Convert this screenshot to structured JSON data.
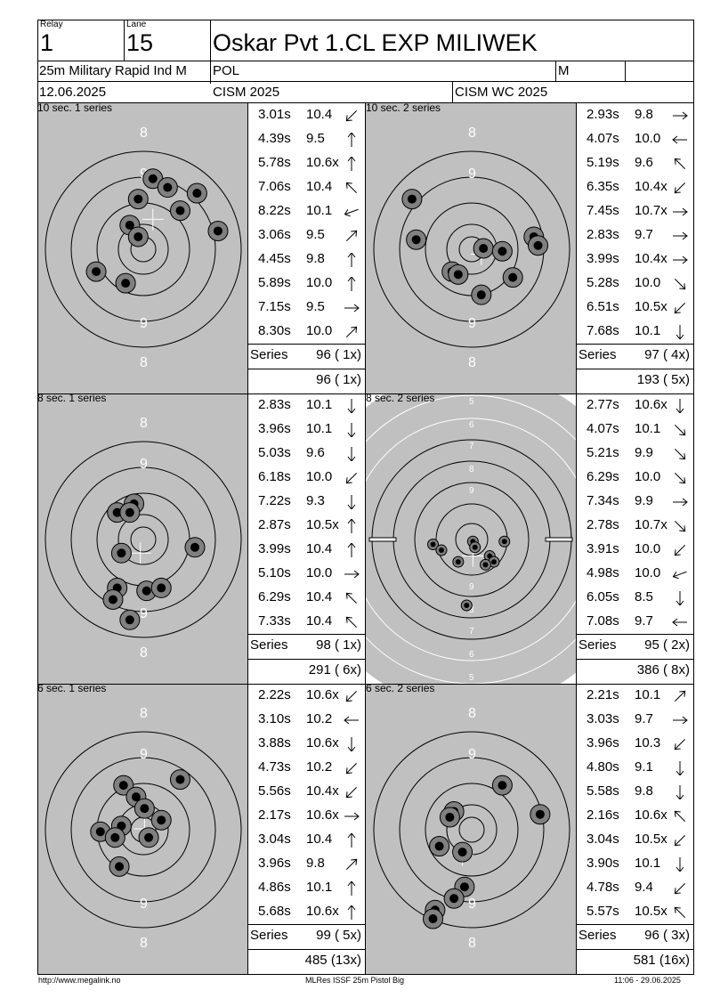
{
  "header": {
    "relay_label": "Relay",
    "relay": "1",
    "lane_label": "Lane",
    "lane": "15",
    "name": "Oskar Pvt 1.CL EXP MILIWEK",
    "event": "25m Military Rapid Ind M",
    "nation": "POL",
    "gender": "M",
    "date": "12.06.2025",
    "competition": "CISM 2025",
    "championship": "CISM WC 2025"
  },
  "series": [
    {
      "title": "10 sec. 1 series",
      "target": "precision",
      "shots": [
        {
          "time": "3.01s",
          "score": "10.4",
          "dir": "sw"
        },
        {
          "time": "4.39s",
          "score": "9.5",
          "dir": "n"
        },
        {
          "time": "5.78s",
          "score": "10.6x",
          "dir": "n"
        },
        {
          "time": "7.06s",
          "score": "10.4",
          "dir": "nw"
        },
        {
          "time": "8.22s",
          "score": "10.1",
          "dir": "wsw"
        },
        {
          "time": "3.06s",
          "score": "9.5",
          "dir": "ne"
        },
        {
          "time": "4.45s",
          "score": "9.8",
          "dir": "n"
        },
        {
          "time": "5.89s",
          "score": "10.0",
          "dir": "n"
        },
        {
          "time": "7.15s",
          "score": "9.5",
          "dir": "e"
        },
        {
          "time": "8.30s",
          "score": "10.0",
          "dir": "ne"
        }
      ],
      "series_label": "Series",
      "series_total": "96 ( 1x)",
      "running_total": "96 ( 1x)",
      "hits": [
        [
          0.55,
          0.26
        ],
        [
          0.62,
          0.29
        ],
        [
          0.76,
          0.31
        ],
        [
          0.48,
          0.33
        ],
        [
          0.68,
          0.37
        ],
        [
          0.44,
          0.42
        ],
        [
          0.48,
          0.46
        ],
        [
          0.86,
          0.44
        ],
        [
          0.28,
          0.58
        ],
        [
          0.42,
          0.62
        ]
      ],
      "center": [
        0.55,
        0.4
      ]
    },
    {
      "title": "10 sec. 2 series",
      "target": "precision",
      "shots": [
        {
          "time": "2.93s",
          "score": "9.8",
          "dir": "e"
        },
        {
          "time": "4.07s",
          "score": "10.0",
          "dir": "w"
        },
        {
          "time": "5.19s",
          "score": "9.6",
          "dir": "nw"
        },
        {
          "time": "6.35s",
          "score": "10.4x",
          "dir": "sw"
        },
        {
          "time": "7.45s",
          "score": "10.7x",
          "dir": "e"
        },
        {
          "time": "2.83s",
          "score": "9.7",
          "dir": "e"
        },
        {
          "time": "3.99s",
          "score": "10.4x",
          "dir": "e"
        },
        {
          "time": "5.28s",
          "score": "10.0",
          "dir": "se"
        },
        {
          "time": "6.51s",
          "score": "10.5x",
          "dir": "sw"
        },
        {
          "time": "7.68s",
          "score": "10.1",
          "dir": "s"
        }
      ],
      "series_label": "Series",
      "series_total": "97 ( 4x)",
      "running_total": "193 ( 5x)",
      "hits": [
        [
          0.22,
          0.33
        ],
        [
          0.24,
          0.47
        ],
        [
          0.56,
          0.5
        ],
        [
          0.65,
          0.51
        ],
        [
          0.8,
          0.46
        ],
        [
          0.82,
          0.49
        ],
        [
          0.41,
          0.58
        ],
        [
          0.44,
          0.59
        ],
        [
          0.7,
          0.6
        ],
        [
          0.55,
          0.66
        ]
      ],
      "center": [
        0.55,
        0.52
      ]
    },
    {
      "title": "8 sec. 1 series",
      "target": "precision",
      "shots": [
        {
          "time": "2.83s",
          "score": "10.1",
          "dir": "s"
        },
        {
          "time": "3.96s",
          "score": "10.1",
          "dir": "s"
        },
        {
          "time": "5.03s",
          "score": "9.6",
          "dir": "s"
        },
        {
          "time": "6.18s",
          "score": "10.0",
          "dir": "sw"
        },
        {
          "time": "7.22s",
          "score": "9.3",
          "dir": "s"
        },
        {
          "time": "2.87s",
          "score": "10.5x",
          "dir": "n"
        },
        {
          "time": "3.99s",
          "score": "10.4",
          "dir": "n"
        },
        {
          "time": "5.10s",
          "score": "10.0",
          "dir": "e"
        },
        {
          "time": "6.29s",
          "score": "10.4",
          "dir": "nw"
        },
        {
          "time": "7.33s",
          "score": "10.4",
          "dir": "nw"
        }
      ],
      "series_label": "Series",
      "series_total": "98 ( 1x)",
      "running_total": "291 ( 6x)",
      "hits": [
        [
          0.46,
          0.38
        ],
        [
          0.38,
          0.41
        ],
        [
          0.44,
          0.41
        ],
        [
          0.75,
          0.53
        ],
        [
          0.38,
          0.67
        ],
        [
          0.52,
          0.68
        ],
        [
          0.59,
          0.67
        ],
        [
          0.36,
          0.71
        ],
        [
          0.44,
          0.78
        ],
        [
          0.4,
          0.55
        ]
      ],
      "center": [
        0.49,
        0.55
      ]
    },
    {
      "title": "8 sec. 2 series",
      "target": "rapid",
      "shots": [
        {
          "time": "2.77s",
          "score": "10.6x",
          "dir": "s"
        },
        {
          "time": "4.07s",
          "score": "10.1",
          "dir": "se"
        },
        {
          "time": "5.21s",
          "score": "9.9",
          "dir": "se"
        },
        {
          "time": "6.29s",
          "score": "10.0",
          "dir": "se"
        },
        {
          "time": "7.34s",
          "score": "9.9",
          "dir": "e"
        },
        {
          "time": "2.78s",
          "score": "10.7x",
          "dir": "se"
        },
        {
          "time": "3.91s",
          "score": "10.0",
          "dir": "sw"
        },
        {
          "time": "4.98s",
          "score": "10.0",
          "dir": "wsw"
        },
        {
          "time": "6.05s",
          "score": "8.5",
          "dir": "s"
        },
        {
          "time": "7.08s",
          "score": "9.7",
          "dir": "w"
        }
      ],
      "series_label": "Series",
      "series_total": "95 ( 2x)",
      "running_total": "386 ( 8x)",
      "ring_labels": [
        "5",
        "6",
        "7",
        "8",
        "9",
        "9",
        "8",
        "7",
        "6",
        "5"
      ],
      "hits": [
        [
          0.32,
          0.52
        ],
        [
          0.36,
          0.54
        ],
        [
          0.51,
          0.51
        ],
        [
          0.52,
          0.53
        ],
        [
          0.66,
          0.51
        ],
        [
          0.44,
          0.58
        ],
        [
          0.59,
          0.56
        ],
        [
          0.61,
          0.58
        ],
        [
          0.57,
          0.59
        ],
        [
          0.48,
          0.73
        ]
      ],
      "center": [
        0.51,
        0.56
      ]
    },
    {
      "title": "6 sec. 1 series",
      "target": "precision",
      "shots": [
        {
          "time": "2.22s",
          "score": "10.6x",
          "dir": "sw"
        },
        {
          "time": "3.10s",
          "score": "10.2",
          "dir": "w"
        },
        {
          "time": "3.88s",
          "score": "10.6x",
          "dir": "s"
        },
        {
          "time": "4.73s",
          "score": "10.2",
          "dir": "sw"
        },
        {
          "time": "5.56s",
          "score": "10.4x",
          "dir": "sw"
        },
        {
          "time": "2.17s",
          "score": "10.6x",
          "dir": "e"
        },
        {
          "time": "3.04s",
          "score": "10.4",
          "dir": "n"
        },
        {
          "time": "3.96s",
          "score": "9.8",
          "dir": "ne"
        },
        {
          "time": "4.86s",
          "score": "10.1",
          "dir": "n"
        },
        {
          "time": "5.68s",
          "score": "10.6x",
          "dir": "n"
        }
      ],
      "series_label": "Series",
      "series_total": "99 ( 5x)",
      "running_total": "485 (13x)",
      "hits": [
        [
          0.41,
          0.35
        ],
        [
          0.47,
          0.39
        ],
        [
          0.68,
          0.33
        ],
        [
          0.51,
          0.43
        ],
        [
          0.59,
          0.47
        ],
        [
          0.4,
          0.49
        ],
        [
          0.3,
          0.51
        ],
        [
          0.37,
          0.53
        ],
        [
          0.53,
          0.53
        ],
        [
          0.39,
          0.63
        ]
      ],
      "center": [
        0.51,
        0.5
      ]
    },
    {
      "title": "6 sec. 2 series",
      "target": "precision",
      "shots": [
        {
          "time": "2.21s",
          "score": "10.1",
          "dir": "ne"
        },
        {
          "time": "3.03s",
          "score": "9.7",
          "dir": "e"
        },
        {
          "time": "3.96s",
          "score": "10.3",
          "dir": "sw"
        },
        {
          "time": "4.80s",
          "score": "9.1",
          "dir": "s"
        },
        {
          "time": "5.58s",
          "score": "9.8",
          "dir": "s"
        },
        {
          "time": "2.16s",
          "score": "10.6x",
          "dir": "nw"
        },
        {
          "time": "3.04s",
          "score": "10.5x",
          "dir": "sw"
        },
        {
          "time": "3.90s",
          "score": "10.1",
          "dir": "s"
        },
        {
          "time": "4.78s",
          "score": "9.4",
          "dir": "sw"
        },
        {
          "time": "5.57s",
          "score": "10.5x",
          "dir": "nw"
        }
      ],
      "series_label": "Series",
      "series_total": "96 ( 3x)",
      "running_total": "581 (16x)",
      "hits": [
        [
          0.65,
          0.35
        ],
        [
          0.83,
          0.45
        ],
        [
          0.42,
          0.44
        ],
        [
          0.4,
          0.46
        ],
        [
          0.35,
          0.56
        ],
        [
          0.46,
          0.58
        ],
        [
          0.47,
          0.7
        ],
        [
          0.42,
          0.74
        ],
        [
          0.33,
          0.78
        ],
        [
          0.32,
          0.81
        ]
      ],
      "center": [
        0.46,
        0.59
      ]
    }
  ],
  "footer": {
    "left": "http://www.megalink.no",
    "center": "MLRes ISSF 25m Pistol Big",
    "right": "11:06 - 29.06.2025"
  }
}
